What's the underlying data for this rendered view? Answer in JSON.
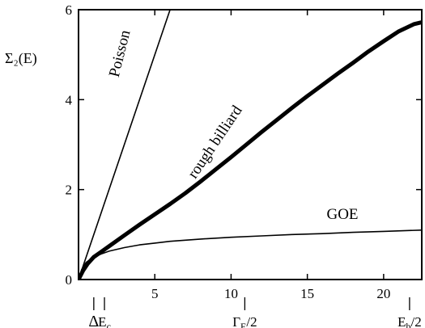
{
  "chart_data": {
    "type": "line",
    "title": "",
    "ylabel": "Σ₂(E)",
    "xlabel": "",
    "xlim": [
      0,
      22.5
    ],
    "ylim": [
      0,
      6
    ],
    "grid": false,
    "x_ticks": [
      5,
      10,
      15,
      20
    ],
    "y_ticks": [
      0,
      2,
      4,
      6
    ],
    "series": [
      {
        "name": "Poisson",
        "style": "thin",
        "x": [
          0,
          6
        ],
        "y": [
          0,
          6
        ]
      },
      {
        "name": "rough billiard",
        "style": "thick",
        "x": [
          0,
          0.3,
          0.6,
          1,
          1.5,
          2,
          3,
          4,
          5,
          6,
          7,
          8,
          9,
          10,
          11,
          12,
          13,
          14,
          15,
          16,
          17,
          18,
          19,
          20,
          21,
          22,
          22.5
        ],
        "y": [
          0,
          0.2,
          0.35,
          0.5,
          0.62,
          0.74,
          0.98,
          1.22,
          1.45,
          1.68,
          1.92,
          2.18,
          2.45,
          2.72,
          3.0,
          3.28,
          3.55,
          3.82,
          4.08,
          4.33,
          4.58,
          4.82,
          5.07,
          5.3,
          5.52,
          5.68,
          5.72
        ]
      },
      {
        "name": "GOE",
        "style": "thin",
        "x": [
          0,
          0.2,
          0.5,
          1,
          1.5,
          2,
          3,
          4,
          5,
          6,
          8,
          10,
          12,
          14,
          16,
          18,
          20,
          22.5
        ],
        "y": [
          0,
          0.22,
          0.38,
          0.5,
          0.57,
          0.63,
          0.71,
          0.77,
          0.81,
          0.85,
          0.9,
          0.94,
          0.97,
          1.0,
          1.02,
          1.05,
          1.07,
          1.1
        ]
      }
    ],
    "annotations": [
      {
        "text": "Poisson",
        "x": 3.0,
        "y": 5.0,
        "angle": -76
      },
      {
        "text": "rough billiard",
        "x": 9.2,
        "y": 3.0,
        "angle": -56
      },
      {
        "text": "GOE",
        "x": 17.3,
        "y": 1.35,
        "angle": 0
      }
    ],
    "energy_markers": [
      {
        "label": "Δ",
        "sub": "",
        "x": 1.0
      },
      {
        "label": "E",
        "sub": "c",
        "x": 1.7
      },
      {
        "label": "Γ",
        "sub": "E",
        "suffix": "/2",
        "x": 10.9
      },
      {
        "label": "E",
        "sub": "b",
        "suffix": "/2",
        "x": 21.7
      }
    ]
  }
}
